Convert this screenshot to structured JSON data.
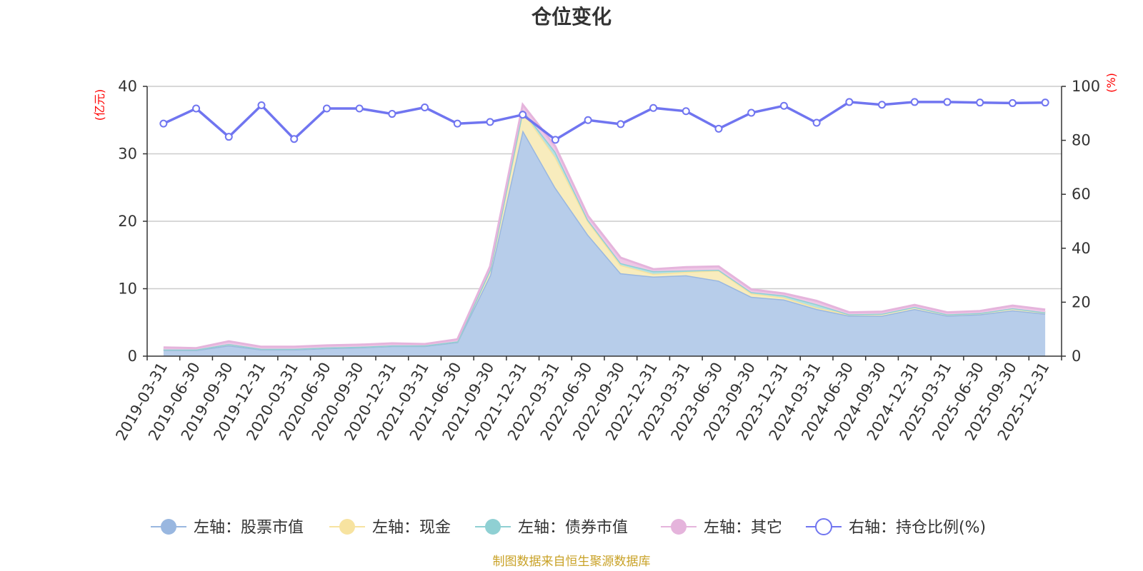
{
  "chart_data": {
    "type": "area",
    "title": "仓位变化",
    "left_axis_unit": "(亿元)",
    "right_axis_unit": "(%)",
    "ylim_left": [
      0,
      40
    ],
    "yticks_left": [
      "0",
      "10",
      "20",
      "30",
      "40"
    ],
    "ylim_right": [
      0,
      100
    ],
    "yticks_right": [
      "0",
      "20",
      "40",
      "60",
      "80",
      "100"
    ],
    "categories": [
      "2019-03-31",
      "2019-06-30",
      "2019-09-30",
      "2019-12-31",
      "2020-03-31",
      "2020-06-30",
      "2020-09-30",
      "2020-12-31",
      "2021-03-31",
      "2021-06-30",
      "2021-09-30",
      "2021-12-31",
      "2022-03-31",
      "2022-06-30",
      "2022-09-30",
      "2022-12-31",
      "2023-03-31",
      "2023-06-30",
      "2023-09-30",
      "2023-12-31",
      "2024-03-31",
      "2024-06-30",
      "2024-09-30",
      "2024-12-31",
      "2025-03-31",
      "2025-06-30",
      "2025-09-30",
      "2025-12-31"
    ],
    "series": [
      {
        "name": "左轴：股票市值",
        "axis": "left",
        "type": "area",
        "color": "#99b7e0",
        "fill": "#b7cdea",
        "values": [
          0.9,
          0.9,
          1.6,
          1.0,
          1.0,
          1.2,
          1.3,
          1.5,
          1.5,
          2.1,
          12.0,
          33.5,
          25.0,
          18.0,
          12.3,
          11.8,
          12.0,
          11.2,
          8.8,
          8.4,
          7.0,
          6.0,
          6.0,
          7.0,
          6.0,
          6.2,
          6.8,
          6.3
        ]
      },
      {
        "name": "左轴：现金",
        "axis": "left",
        "type": "area",
        "color": "#f7e3a0",
        "fill": "#f8ecbd",
        "values": [
          0.1,
          0.1,
          0.2,
          0.1,
          0.1,
          0.1,
          0.1,
          0.1,
          0.1,
          0.1,
          0.8,
          2.8,
          4.5,
          2.0,
          1.2,
          0.4,
          0.5,
          1.5,
          0.5,
          0.3,
          0.2,
          0.2,
          0.3,
          0.3,
          0.2,
          0.2,
          0.3,
          0.2
        ]
      },
      {
        "name": "左轴：债券市值",
        "axis": "left",
        "type": "area",
        "color": "#8fd0d3",
        "fill": "#b5e0e2",
        "values": [
          0.0,
          0.0,
          0.0,
          0.0,
          0.0,
          0.0,
          0.0,
          0.0,
          0.0,
          0.0,
          0.0,
          0.2,
          0.8,
          0.2,
          0.3,
          0.4,
          0.2,
          0.1,
          0.2,
          0.3,
          0.5,
          0.0,
          0.0,
          0.0,
          0.0,
          0.0,
          0.0,
          0.0
        ]
      },
      {
        "name": "左轴：其它",
        "axis": "left",
        "type": "area",
        "color": "#e5b4dc",
        "fill": "#eec7e6",
        "values": [
          0.3,
          0.2,
          0.4,
          0.3,
          0.3,
          0.3,
          0.3,
          0.3,
          0.2,
          0.3,
          0.5,
          0.8,
          0.8,
          0.6,
          0.8,
          0.3,
          0.5,
          0.5,
          0.4,
          0.3,
          0.5,
          0.3,
          0.3,
          0.3,
          0.3,
          0.3,
          0.4,
          0.4
        ]
      },
      {
        "name": "右轴：持仓比例(%)",
        "axis": "right",
        "type": "line",
        "color": "#7075f0",
        "values": [
          86.2,
          91.8,
          81.3,
          93.0,
          80.5,
          91.8,
          91.8,
          89.8,
          92.2,
          86.2,
          86.8,
          89.5,
          80.2,
          87.5,
          86.0,
          92.0,
          90.8,
          84.3,
          90.2,
          92.8,
          86.5,
          94.2,
          93.2,
          94.2,
          94.2,
          94.0,
          93.8,
          94.0
        ]
      }
    ],
    "source_note": "制图数据来自恒生聚源数据库"
  }
}
